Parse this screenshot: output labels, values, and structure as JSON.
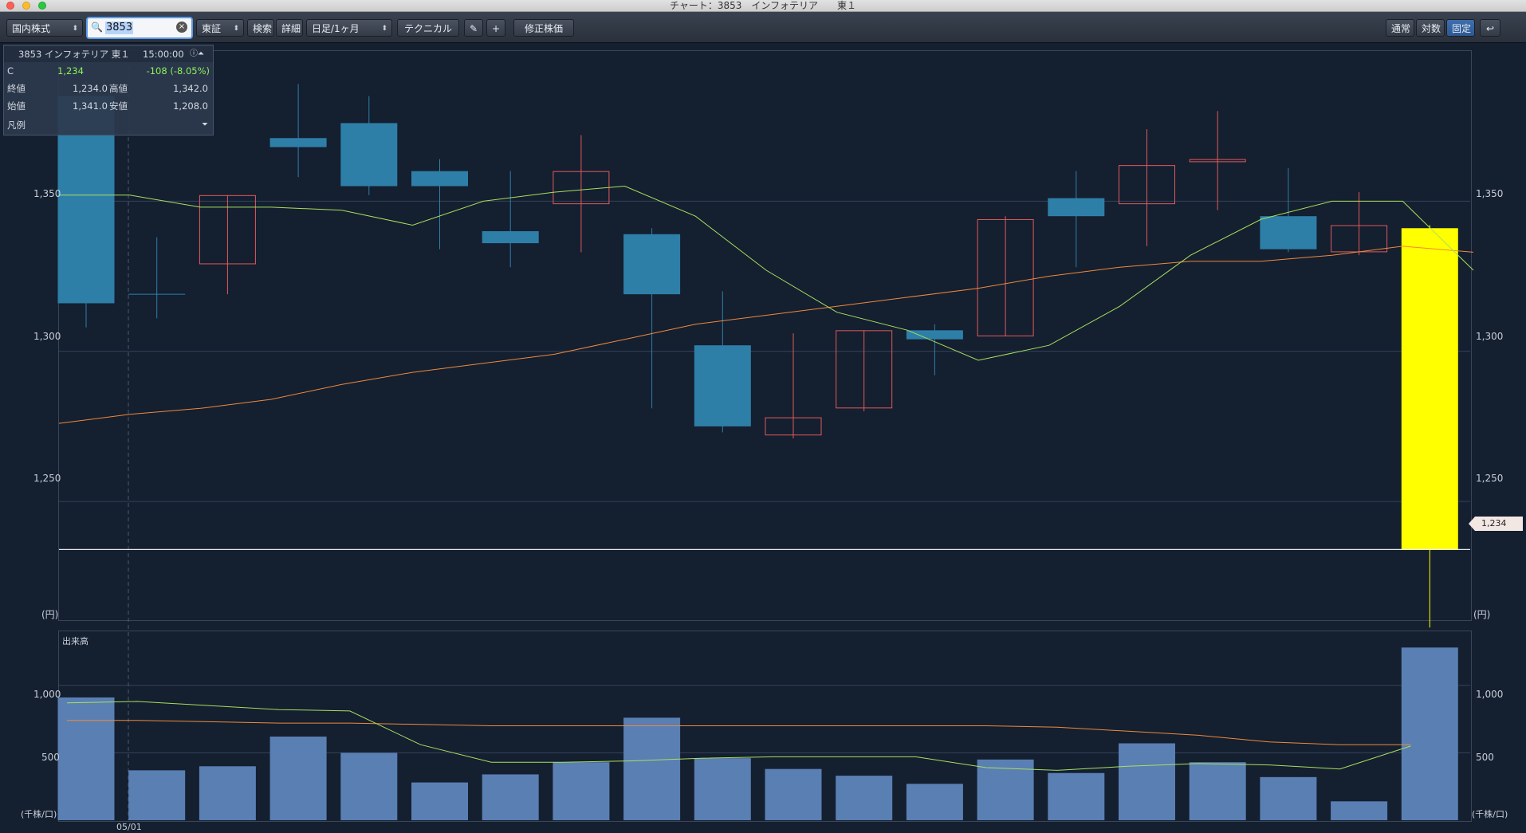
{
  "window": {
    "title": "チャート：3853　インフォテリア　　東１"
  },
  "toolbar": {
    "market_select": "国内株式",
    "search_value": "3853",
    "exchange_select": "東証",
    "search_button": "検索",
    "detail_button": "詳細",
    "period_select": "日足/1ヶ月",
    "technical_button": "テクニカル",
    "pencil_icon": "pencil-icon",
    "crosshair_icon": "plus-icon",
    "adjusted_button": "修正株価",
    "scale_normal": "通常",
    "scale_log": "対数",
    "scale_fixed": "固定",
    "undo_icon": "return-icon"
  },
  "info_panel": {
    "header": "3853 インフォテリア 東１",
    "time": "15:00:00",
    "c_label": "C",
    "current": "1,234",
    "change": "-108 (-8.05%)",
    "close_label": "終値",
    "close": "1,234.0",
    "high_label": "高値",
    "high": "1,342.0",
    "open_label": "始値",
    "open": "1,341.0",
    "low_label": "安値",
    "low": "1,208.0",
    "legend_label": "凡例"
  },
  "price_axis": {
    "ticks": [
      "1,350",
      "1,300",
      "1,250"
    ],
    "unit": "(円)",
    "current_marker": "1,234"
  },
  "volume_axis": {
    "title": "出来高",
    "ticks": [
      "1,000",
      "500"
    ],
    "unit": "(千株/口)"
  },
  "x_axis": {
    "date_label": "05/01"
  },
  "colors": {
    "background": "#141f30",
    "up": "#e05a5a",
    "down": "#2e7fa8",
    "latest": "#ffff00",
    "ma_short": "#a8e05c",
    "ma_long": "#ef8a3a",
    "volume": "#5a7fb3"
  },
  "chart_data": {
    "type": "candlestick",
    "candles": [
      {
        "o": 1385,
        "h": 1390,
        "l": 1308,
        "c": 1316
      },
      {
        "o": 1319,
        "h": 1338,
        "l": 1311,
        "c": 1319
      },
      {
        "o": 1329,
        "h": 1352,
        "l": 1319,
        "c": 1352
      },
      {
        "o": 1371,
        "h": 1389,
        "l": 1358,
        "c": 1368
      },
      {
        "o": 1376,
        "h": 1385,
        "l": 1352,
        "c": 1355
      },
      {
        "o": 1360,
        "h": 1364,
        "l": 1334,
        "c": 1355
      },
      {
        "o": 1340,
        "h": 1360,
        "l": 1328,
        "c": 1336
      },
      {
        "o": 1349,
        "h": 1372,
        "l": 1333,
        "c": 1360
      },
      {
        "o": 1339,
        "h": 1341,
        "l": 1281,
        "c": 1319
      },
      {
        "o": 1302,
        "h": 1320,
        "l": 1273,
        "c": 1275
      },
      {
        "o": 1272,
        "h": 1306,
        "l": 1271,
        "c": 1278
      },
      {
        "o": 1281,
        "h": 1307,
        "l": 1280,
        "c": 1307
      },
      {
        "o": 1307,
        "h": 1309,
        "l": 1292,
        "c": 1304
      },
      {
        "o": 1305,
        "h": 1345,
        "l": 1305,
        "c": 1344
      },
      {
        "o": 1351,
        "h": 1360,
        "l": 1328,
        "c": 1345
      },
      {
        "o": 1349,
        "h": 1374,
        "l": 1335,
        "c": 1362
      },
      {
        "o": 1363,
        "h": 1380,
        "l": 1347,
        "c": 1364
      },
      {
        "o": 1345,
        "h": 1361,
        "l": 1333,
        "c": 1334
      },
      {
        "o": 1333,
        "h": 1353,
        "l": 1332,
        "c": 1342
      },
      {
        "o": 1341,
        "h": 1342,
        "l": 1208,
        "c": 1234
      }
    ],
    "ma_short": [
      1352,
      1352,
      1348,
      1348,
      1347,
      1342,
      1350,
      1353,
      1355,
      1345,
      1327,
      1313,
      1307,
      1297,
      1302,
      1315,
      1332,
      1344,
      1350,
      1350,
      1327
    ],
    "ma_long": [
      1276,
      1279,
      1281,
      1284,
      1289,
      1293,
      1296,
      1299,
      1304,
      1309,
      1312,
      1315,
      1318,
      1321,
      1325,
      1328,
      1330,
      1330,
      1332,
      1335,
      1333
    ],
    "volume": [
      910,
      370,
      400,
      620,
      500,
      280,
      340,
      430,
      760,
      460,
      380,
      330,
      270,
      450,
      350,
      570,
      430,
      320,
      140,
      1280
    ],
    "vol_ma_short": [
      870,
      880,
      850,
      820,
      810,
      560,
      430,
      430,
      440,
      460,
      470,
      470,
      470,
      390,
      370,
      400,
      420,
      410,
      380,
      550
    ],
    "vol_ma_long": [
      740,
      740,
      730,
      720,
      720,
      710,
      700,
      700,
      700,
      700,
      700,
      700,
      700,
      700,
      690,
      660,
      630,
      580,
      560,
      560
    ],
    "ylim": [
      1211,
      1400
    ],
    "vol_ylim": [
      0,
      1400
    ]
  }
}
